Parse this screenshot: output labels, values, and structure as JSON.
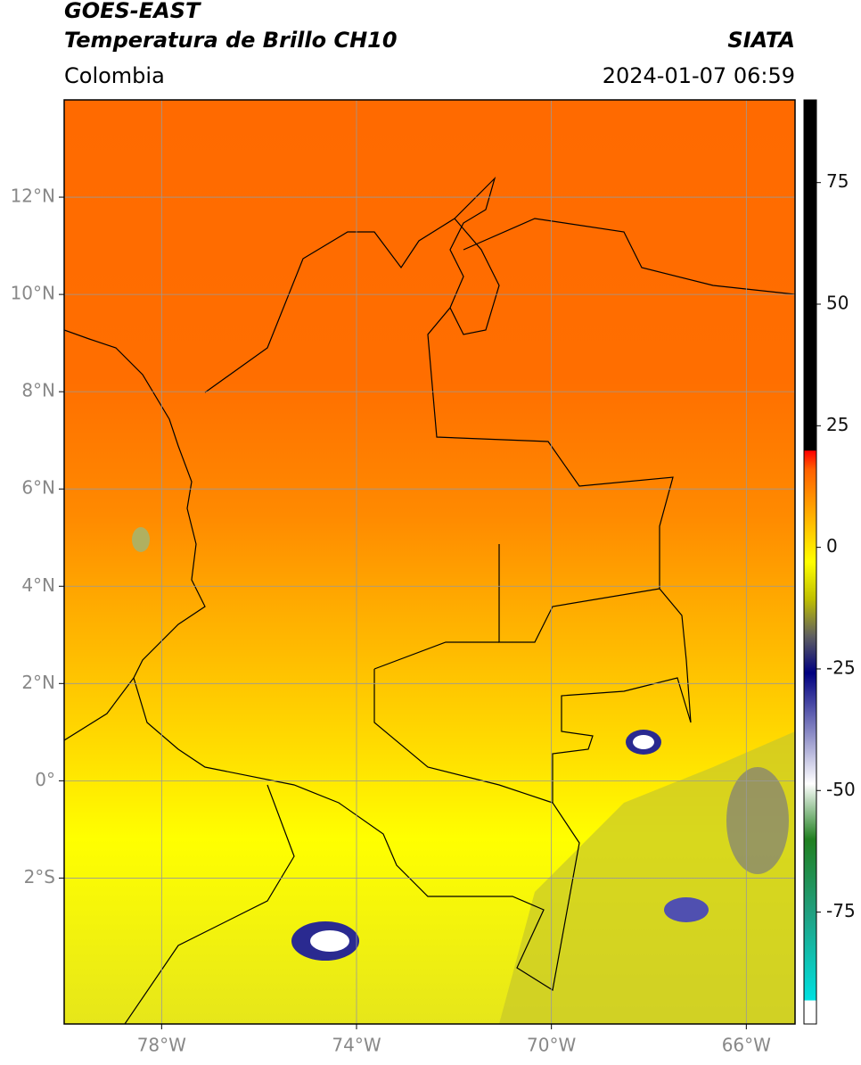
{
  "header": {
    "title": "GOES-EAST",
    "subtitle": "Temperatura de Brillo CH10",
    "region": "Colombia",
    "source": "SIATA",
    "datetime": "2024-01-07 06:59"
  },
  "map": {
    "xlim": [
      -80,
      -65
    ],
    "ylim": [
      -5,
      14
    ],
    "xticks": [
      {
        "value": -78,
        "label": "78°W"
      },
      {
        "value": -74,
        "label": "74°W"
      },
      {
        "value": -70,
        "label": "70°W"
      },
      {
        "value": -66,
        "label": "66°W"
      }
    ],
    "yticks": [
      {
        "value": 12,
        "label": "12°N"
      },
      {
        "value": 10,
        "label": "10°N"
      },
      {
        "value": 8,
        "label": "8°N"
      },
      {
        "value": 6,
        "label": "6°N"
      },
      {
        "value": 4,
        "label": "4°N"
      },
      {
        "value": 2,
        "label": "2°N"
      },
      {
        "value": 0,
        "label": "0°"
      },
      {
        "value": -2,
        "label": "2°S"
      }
    ],
    "grid": true
  },
  "colorbar": {
    "lim": [
      -98,
      92
    ],
    "ticks": [
      75,
      50,
      25,
      0,
      -25,
      -50,
      -75
    ]
  }
}
